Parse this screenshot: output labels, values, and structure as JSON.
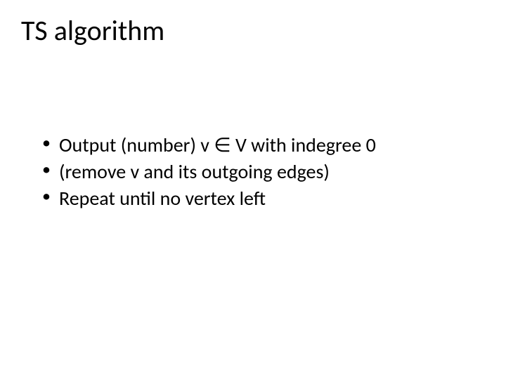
{
  "slide": {
    "title": "TS algorithm",
    "title_fontsize": 40,
    "title_color": "#000000",
    "bullets": [
      "Output (number) v ∈ V with indegree 0",
      "(remove v and its outgoing edges)",
      "Repeat until no vertex left"
    ],
    "bullet_fontsize": 28,
    "bullet_color": "#000000",
    "background_color": "#ffffff",
    "font_family": "Calibri"
  }
}
